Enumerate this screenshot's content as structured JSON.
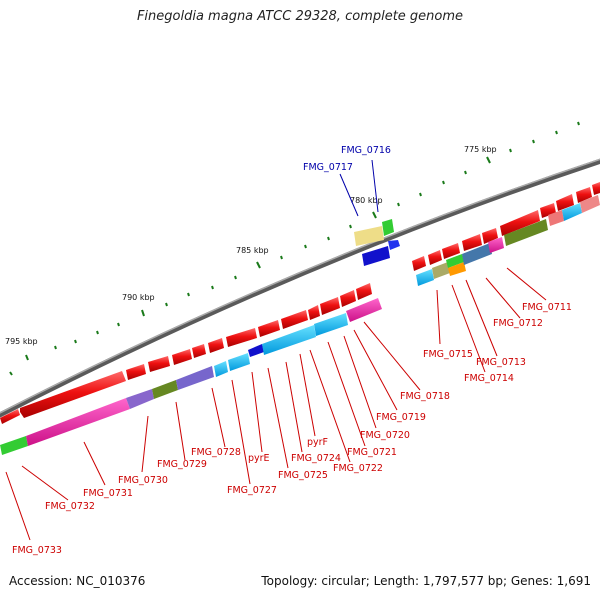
{
  "title": "Finegoldia magna ATCC 29328, complete genome",
  "footer": {
    "accession": "Accession: NC_010376",
    "topology": "Topology: circular; Length: 1,797,577 bp; Genes: 1,691"
  },
  "scale_labels": [
    "775 kbp",
    "780 kbp",
    "785 kbp",
    "790 kbp",
    "795 kbp"
  ],
  "gene_labels": {
    "above": [
      "FMG_0716",
      "FMG_0717"
    ],
    "below": [
      "FMG_0711",
      "FMG_0712",
      "FMG_0713",
      "FMG_0714",
      "FMG_0715",
      "FMG_0718",
      "FMG_0719",
      "FMG_0720",
      "FMG_0721",
      "FMG_0722",
      "pyrF",
      "FMG_0724",
      "FMG_0725",
      "pyrE",
      "FMG_0727",
      "FMG_0728",
      "FMG_0729",
      "FMG_0730",
      "FMG_0731",
      "FMG_0732",
      "FMG_0733"
    ]
  },
  "colors": {
    "forward_cds": "#ee1111",
    "label_red": "#cc0000",
    "label_blue": "#0000aa",
    "backbone": "#777777",
    "tick": "#1a7a1a"
  }
}
